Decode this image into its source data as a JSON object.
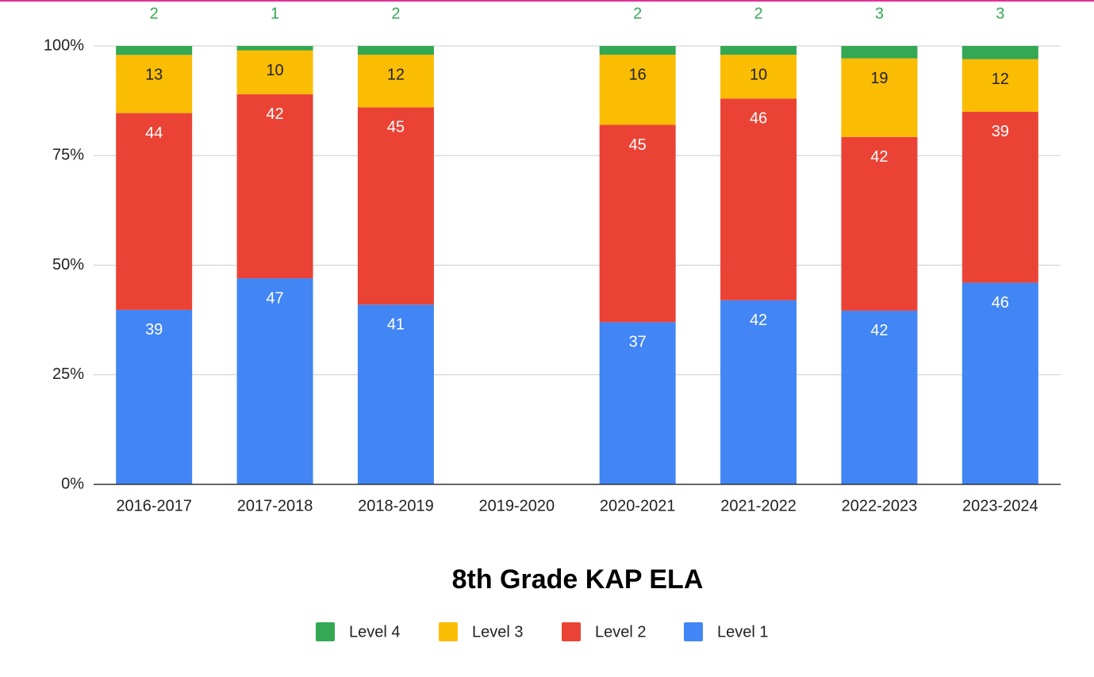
{
  "chart_data": {
    "type": "bar",
    "stacking": "percent",
    "title": "8th Grade KAP ELA",
    "categories": [
      "2016-2017",
      "2017-2018",
      "2018-2019",
      "2019-2020",
      "2020-2021",
      "2021-2022",
      "2022-2023",
      "2023-2024"
    ],
    "series": [
      {
        "name": "Level 4",
        "color": "#34a853",
        "values": [
          2,
          1,
          2,
          null,
          2,
          2,
          3,
          3
        ]
      },
      {
        "name": "Level 3",
        "color": "#fbbc04",
        "values": [
          13,
          10,
          12,
          null,
          16,
          10,
          19,
          12
        ]
      },
      {
        "name": "Level 2",
        "color": "#ea4335",
        "values": [
          44,
          42,
          45,
          null,
          45,
          46,
          42,
          39
        ]
      },
      {
        "name": "Level 1",
        "color": "#4285f4",
        "values": [
          39,
          47,
          41,
          null,
          37,
          42,
          42,
          46
        ]
      }
    ],
    "ylim": [
      0,
      100
    ],
    "yticks": [
      {
        "value": 0,
        "label": "0%"
      },
      {
        "value": 25,
        "label": "25%"
      },
      {
        "value": 50,
        "label": "50%"
      },
      {
        "value": 75,
        "label": "75%"
      },
      {
        "value": 100,
        "label": "100%"
      }
    ],
    "grid": true,
    "legend": "bottom"
  }
}
